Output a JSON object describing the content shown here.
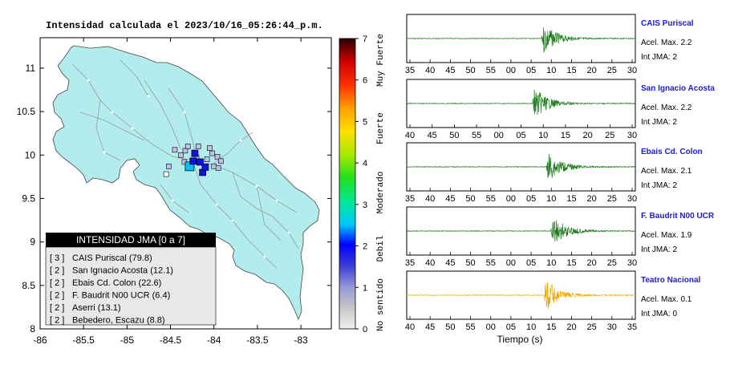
{
  "map": {
    "title": "Intensidad calculada el 2023/10/16_05:26:44_p.m.",
    "x_ticks": [
      "-86",
      "-85.5",
      "-85",
      "-84.5",
      "-84",
      "-83.5",
      "-83"
    ],
    "x_values": [
      -86,
      -85.5,
      -85,
      -84.5,
      -84,
      -83.5,
      -83
    ],
    "y_ticks": [
      "11",
      "10.5",
      "10",
      "9.5",
      "9",
      "8.5",
      "8"
    ],
    "y_values": [
      11,
      10.5,
      10,
      9.5,
      9,
      8.5,
      8
    ],
    "colorbar_ticks": [
      "7",
      "6",
      "5",
      "4",
      "3",
      "2",
      "1",
      "0"
    ],
    "colorbar_labels": [
      "Muy Fuerte",
      "Fuerte",
      "Moderado",
      "Debil",
      "No sentido"
    ],
    "legend_title": "INTENSIDAD JMA [0 a 7]",
    "legend_items": [
      {
        "level": "[ 3 ]",
        "text": "CAIS Puriscal (79.8)"
      },
      {
        "level": "[ 2 ]",
        "text": "San Ignacio Acosta (12.1)"
      },
      {
        "level": "[ 2 ]",
        "text": "Ebais Cd. Colon (22.6)"
      },
      {
        "level": "[ 2 ]",
        "text": "F. Baudrit N00 UCR (6.4)"
      },
      {
        "level": "[ 2 ]",
        "text": "Aserri (13.1)"
      },
      {
        "level": "[ 2 ]",
        "text": "Bebedero, Escazu (8.8)"
      }
    ]
  },
  "traces": [
    {
      "name": "CAIS Puriscal",
      "acel": "Acel. Max. 2.2",
      "int": "Int JMA: 2",
      "ticks": [
        "35",
        "40",
        "45",
        "50",
        "55",
        "00",
        "05",
        "10",
        "15",
        "20",
        "25",
        "30"
      ],
      "color": "#1a7a1a"
    },
    {
      "name": "San Ignacio Acosta",
      "acel": "Acel. Max. 2.2",
      "int": "Int JMA: 2",
      "ticks": [
        "40",
        "45",
        "50",
        "55",
        "00",
        "05",
        "10",
        "15",
        "20",
        "25",
        "30"
      ],
      "color": "#1a7a1a"
    },
    {
      "name": "Ebais Cd. Colon",
      "acel": "Acel. Max. 2.1",
      "int": "Int JMA: 2",
      "ticks": [
        "35",
        "40",
        "45",
        "50",
        "55",
        "00",
        "05",
        "10",
        "15",
        "20",
        "25",
        "30"
      ],
      "color": "#1a7a1a"
    },
    {
      "name": "F. Baudrit N00 UCR",
      "acel": "Acel. Max. 1.9",
      "int": "Int JMA: 2",
      "ticks": [
        "35",
        "40",
        "45",
        "50",
        "55",
        "00",
        "05",
        "10",
        "15",
        "20",
        "25",
        "30"
      ],
      "color": "#1a7a1a"
    },
    {
      "name": "Teatro Nacional",
      "acel": "Acel. Max. 0.1",
      "int": "Int JMA: 0",
      "ticks": [
        "40",
        "45",
        "50",
        "55",
        "00",
        "05",
        "10",
        "15",
        "20",
        "25",
        "30",
        "35"
      ],
      "color": "#f0a800"
    }
  ],
  "xlabel": "Tiempo (s)",
  "chart_data": [
    {
      "type": "scatter",
      "title": "Intensidad calculada el 2023/10/16_05:26:44_p.m.",
      "xlim": [
        -86,
        -82.65
      ],
      "ylim": [
        8,
        11.35
      ],
      "legend_placement": "bottom-left",
      "x_ticks": [
        -86,
        -85.5,
        -85,
        -84.5,
        -84,
        -83.5,
        -83
      ],
      "y_ticks": [
        8,
        8.5,
        9,
        9.5,
        10,
        10.5,
        11
      ],
      "colorbar": {
        "min": 0,
        "max": 7,
        "ticks": [
          0,
          1,
          2,
          3,
          4,
          5,
          6,
          7
        ],
        "labels": [
          "No sentido",
          "Debil",
          "Moderado",
          "Fuerte",
          "Muy Fuerte"
        ]
      },
      "stations": [
        {
          "name": "CAIS Puriscal",
          "intensity": 3,
          "pga": 79.8,
          "lon": -84.28,
          "lat": 9.87
        },
        {
          "name": "San Ignacio Acosta",
          "intensity": 2,
          "pga": 12.1,
          "lon": -84.13,
          "lat": 9.8
        },
        {
          "name": "Ebais Cd. Colon",
          "intensity": 2,
          "pga": 22.6,
          "lon": -84.24,
          "lat": 9.93
        },
        {
          "name": "F. Baudrit N00 UCR",
          "intensity": 2,
          "pga": 6.4,
          "lon": -84.22,
          "lat": 10.02
        },
        {
          "name": "Aserri",
          "intensity": 2,
          "pga": 13.1,
          "lon": -84.1,
          "lat": 9.86
        },
        {
          "name": "Bebedero, Escazu",
          "intensity": 2,
          "pga": 8.8,
          "lon": -84.16,
          "lat": 9.92
        }
      ]
    },
    {
      "type": "line",
      "xlabel": "Tiempo (s)",
      "series": [
        {
          "name": "CAIS Puriscal",
          "acel_max": 2.2,
          "int_jma": 2
        },
        {
          "name": "San Ignacio Acosta",
          "acel_max": 2.2,
          "int_jma": 2
        },
        {
          "name": "Ebais Cd. Colon",
          "acel_max": 2.1,
          "int_jma": 2
        },
        {
          "name": "F. Baudrit N00 UCR",
          "acel_max": 1.9,
          "int_jma": 2
        },
        {
          "name": "Teatro Nacional",
          "acel_max": 0.1,
          "int_jma": 0
        }
      ]
    }
  ]
}
